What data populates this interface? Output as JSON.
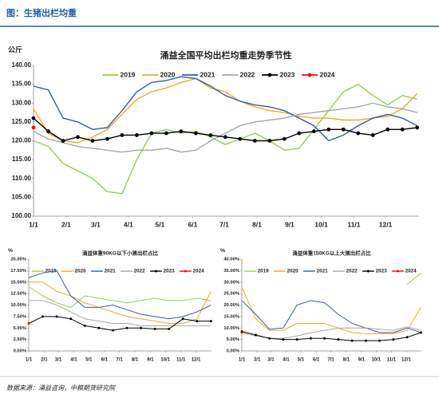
{
  "page_title": "图：生猪出栏均重",
  "source": "数据来源：涌益咨询，中粮期货研究院",
  "chart_data": [
    {
      "type": "line",
      "title": "涌益全国平均出栏均重走势季节性",
      "y_label": "公斤",
      "legend": "top",
      "grid": false,
      "x": [
        0,
        14,
        28,
        42,
        56,
        70,
        84,
        98,
        112,
        126,
        140,
        154,
        168,
        182,
        196,
        210,
        224,
        238,
        252,
        266,
        280,
        294,
        308,
        322,
        336,
        350,
        364
      ],
      "xlim": [
        0,
        365
      ],
      "xticks": [
        {
          "value": 0,
          "label": "1/1"
        },
        {
          "value": 31,
          "label": "2/1"
        },
        {
          "value": 59,
          "label": "3/1"
        },
        {
          "value": 90,
          "label": "4/1"
        },
        {
          "value": 120,
          "label": "5/1"
        },
        {
          "value": 151,
          "label": "6/1"
        },
        {
          "value": 181,
          "label": "7/1"
        },
        {
          "value": 212,
          "label": "8/1"
        },
        {
          "value": 243,
          "label": "9/1"
        },
        {
          "value": 273,
          "label": "10/1"
        },
        {
          "value": 304,
          "label": "11/1"
        },
        {
          "value": 334,
          "label": "12/1"
        }
      ],
      "ylim": [
        100,
        140
      ],
      "yticks": [
        {
          "value": 100,
          "label": "100.00"
        },
        {
          "value": 105,
          "label": "105.00"
        },
        {
          "value": 110,
          "label": "110.00"
        },
        {
          "value": 115,
          "label": "115.00"
        },
        {
          "value": 120,
          "label": "120.00"
        },
        {
          "value": 125,
          "label": "125.00"
        },
        {
          "value": 130,
          "label": "130.00"
        },
        {
          "value": 135,
          "label": "135.00"
        },
        {
          "value": 140,
          "label": "140.00"
        }
      ],
      "series": [
        {
          "name": "2019",
          "color": "#92d050",
          "values": [
            120,
            118.5,
            114,
            112,
            110,
            106.5,
            106,
            115,
            122,
            123,
            122,
            122.5,
            121,
            119,
            120.5,
            122,
            120,
            117.5,
            118,
            123,
            128,
            133,
            135,
            132,
            129.5,
            132,
            131
          ]
        },
        {
          "name": "2020",
          "color": "#f5a623",
          "values": [
            128.5,
            122,
            120,
            119.5,
            121,
            123,
            127,
            131,
            133,
            134,
            135.5,
            136.5,
            134,
            133,
            130.5,
            129,
            128,
            127.5,
            126.5,
            126,
            126,
            125.5,
            125.5,
            126,
            126.5,
            128.5,
            132.5
          ]
        },
        {
          "name": "2021",
          "color": "#2e5fa8",
          "values": [
            134.5,
            133.5,
            126,
            125,
            123,
            123.5,
            128,
            133,
            135.5,
            136,
            137,
            136.5,
            134.5,
            132,
            130.5,
            129.5,
            129,
            128,
            126,
            124,
            120,
            121.5,
            124,
            126,
            127,
            126,
            124
          ]
        },
        {
          "name": "2022",
          "color": "#a6a6a6",
          "values": [
            122.5,
            120.5,
            119.5,
            118.5,
            118,
            117.5,
            117,
            117.5,
            117.5,
            118,
            117,
            117.5,
            120,
            122,
            124,
            125,
            125.5,
            126,
            127,
            127.5,
            128,
            128.5,
            129,
            130,
            129,
            128.5,
            127.5
          ]
        },
        {
          "name": "2023",
          "color": "#000000",
          "marker": "circle",
          "values": [
            126,
            122.5,
            120,
            121,
            120,
            120.5,
            121.5,
            121.5,
            122,
            122,
            122.5,
            122,
            121.5,
            121,
            120.5,
            120,
            120,
            120.5,
            122,
            122.5,
            123,
            123,
            122,
            121.5,
            123,
            123,
            123.5
          ]
        },
        {
          "name": "2024",
          "color": "#ff0000",
          "marker": "circle",
          "values": [
            123.5,
            null,
            null,
            null,
            null,
            null,
            null,
            null,
            null,
            null,
            null,
            null,
            null,
            null,
            null,
            null,
            null,
            null,
            null,
            null,
            null,
            null,
            null,
            null,
            null,
            null,
            null
          ]
        }
      ]
    },
    {
      "type": "line",
      "title": "涌益体重90KG以下小猪出栏占比",
      "y_label": "%",
      "legend": "top",
      "grid": false,
      "x": [
        0,
        28,
        56,
        84,
        112,
        140,
        168,
        196,
        224,
        252,
        280,
        308,
        336,
        364
      ],
      "xlim": [
        0,
        365
      ],
      "xticks": [
        {
          "value": 0,
          "label": "1/1"
        },
        {
          "value": 31,
          "label": "2/1"
        },
        {
          "value": 59,
          "label": "3/1"
        },
        {
          "value": 90,
          "label": "4/1"
        },
        {
          "value": 120,
          "label": "5/1"
        },
        {
          "value": 151,
          "label": "6/1"
        },
        {
          "value": 181,
          "label": "7/1"
        },
        {
          "value": 212,
          "label": "8/1"
        },
        {
          "value": 243,
          "label": "9/1"
        },
        {
          "value": 273,
          "label": "10/1"
        },
        {
          "value": 304,
          "label": "11/1"
        },
        {
          "value": 334,
          "label": "12/1"
        }
      ],
      "ylim": [
        0,
        20
      ],
      "yticks": [
        {
          "value": 0,
          "label": "0.00%"
        },
        {
          "value": 2.5,
          "label": "2.50%"
        },
        {
          "value": 5,
          "label": "5.00%"
        },
        {
          "value": 7.5,
          "label": "7.50%"
        },
        {
          "value": 10,
          "label": "10.00%"
        },
        {
          "value": 12.5,
          "label": "12.50%"
        },
        {
          "value": 15,
          "label": "15.00%"
        },
        {
          "value": 17.5,
          "label": "17.50%"
        },
        {
          "value": 20,
          "label": "20.00%"
        }
      ],
      "series": [
        {
          "name": "2019",
          "color": "#92d050",
          "values": [
            14,
            12,
            10.5,
            9.5,
            12,
            11.5,
            11,
            10.5,
            11,
            11.5,
            11,
            11,
            11.5,
            11
          ]
        },
        {
          "name": "2020",
          "color": "#f5a623",
          "values": [
            15,
            15,
            13,
            12,
            10.5,
            9.5,
            8.5,
            7.5,
            7,
            6.5,
            6,
            6,
            7,
            13
          ]
        },
        {
          "name": "2021",
          "color": "#2e5fa8",
          "values": [
            16,
            17,
            17.5,
            12,
            9.5,
            9.5,
            10,
            9,
            8,
            7.5,
            7,
            7.5,
            8.5,
            10
          ]
        },
        {
          "name": "2022",
          "color": "#a6a6a6",
          "values": [
            11,
            11,
            10,
            8.5,
            7,
            6.5,
            6,
            6,
            5.5,
            5.5,
            5.5,
            5.5,
            5.5,
            5.5
          ]
        },
        {
          "name": "2023",
          "color": "#000000",
          "marker": "circle",
          "values": [
            6,
            7.5,
            7.5,
            7,
            5.5,
            5,
            4.5,
            5,
            5,
            4.8,
            4.8,
            7,
            6.5,
            6.5
          ]
        },
        {
          "name": "2024",
          "color": "#ff0000",
          "marker": "circle",
          "values": [
            6,
            null,
            null,
            null,
            null,
            null,
            null,
            null,
            null,
            null,
            null,
            null,
            null,
            null
          ]
        }
      ]
    },
    {
      "type": "line",
      "title": "涌益体重150KG以上大猪出栏占比",
      "y_label": "%",
      "legend": "top",
      "grid": false,
      "x": [
        0,
        28,
        56,
        84,
        112,
        140,
        168,
        196,
        224,
        252,
        280,
        308,
        336,
        364
      ],
      "xlim": [
        0,
        365
      ],
      "xticks": [
        {
          "value": 0,
          "label": "1/1"
        },
        {
          "value": 31,
          "label": "2/1"
        },
        {
          "value": 59,
          "label": "3/1"
        },
        {
          "value": 90,
          "label": "4/1"
        },
        {
          "value": 120,
          "label": "5/1"
        },
        {
          "value": 151,
          "label": "6/1"
        },
        {
          "value": 181,
          "label": "7/1"
        },
        {
          "value": 212,
          "label": "8/1"
        },
        {
          "value": 243,
          "label": "9/1"
        },
        {
          "value": 273,
          "label": "10/1"
        },
        {
          "value": 304,
          "label": "11/1"
        },
        {
          "value": 334,
          "label": "12/1"
        }
      ],
      "ylim": [
        0,
        40
      ],
      "yticks": [
        {
          "value": 0,
          "label": "0.00%"
        },
        {
          "value": 5,
          "label": "5.00%"
        },
        {
          "value": 10,
          "label": "10.00%"
        },
        {
          "value": 15,
          "label": "15.00%"
        },
        {
          "value": 20,
          "label": "20.00%"
        },
        {
          "value": 25,
          "label": "25.00%"
        },
        {
          "value": 30,
          "label": "30.00%"
        },
        {
          "value": 35,
          "label": "35.00%"
        },
        {
          "value": 40,
          "label": "40.00%"
        }
      ],
      "series": [
        {
          "name": "2019",
          "color": "#92d050",
          "values": [
            null,
            null,
            null,
            null,
            null,
            null,
            null,
            null,
            null,
            null,
            null,
            null,
            29,
            34
          ]
        },
        {
          "name": "2020",
          "color": "#f5a623",
          "values": [
            28,
            14,
            9,
            9,
            12,
            12,
            12,
            10,
            8,
            7.5,
            7.5,
            7.5,
            9,
            19
          ]
        },
        {
          "name": "2021",
          "color": "#2e5fa8",
          "values": [
            22,
            16,
            9.5,
            10,
            20,
            22,
            21,
            16,
            12,
            10,
            8,
            8,
            10,
            8
          ]
        },
        {
          "name": "2022",
          "color": "#a6a6a6",
          "values": [
            8,
            6.5,
            5.5,
            5.5,
            6.5,
            8,
            9,
            10,
            10,
            10,
            9.5,
            9,
            10.5,
            9
          ]
        },
        {
          "name": "2023",
          "color": "#000000",
          "marker": "circle",
          "values": [
            8.5,
            7,
            5.5,
            5,
            5,
            5.5,
            5.5,
            5,
            4.5,
            4.5,
            4.5,
            5,
            6,
            8
          ]
        },
        {
          "name": "2024",
          "color": "#ff0000",
          "marker": "circle",
          "values": [
            8,
            null,
            null,
            null,
            null,
            null,
            null,
            null,
            null,
            null,
            null,
            null,
            null,
            null
          ]
        }
      ]
    }
  ]
}
